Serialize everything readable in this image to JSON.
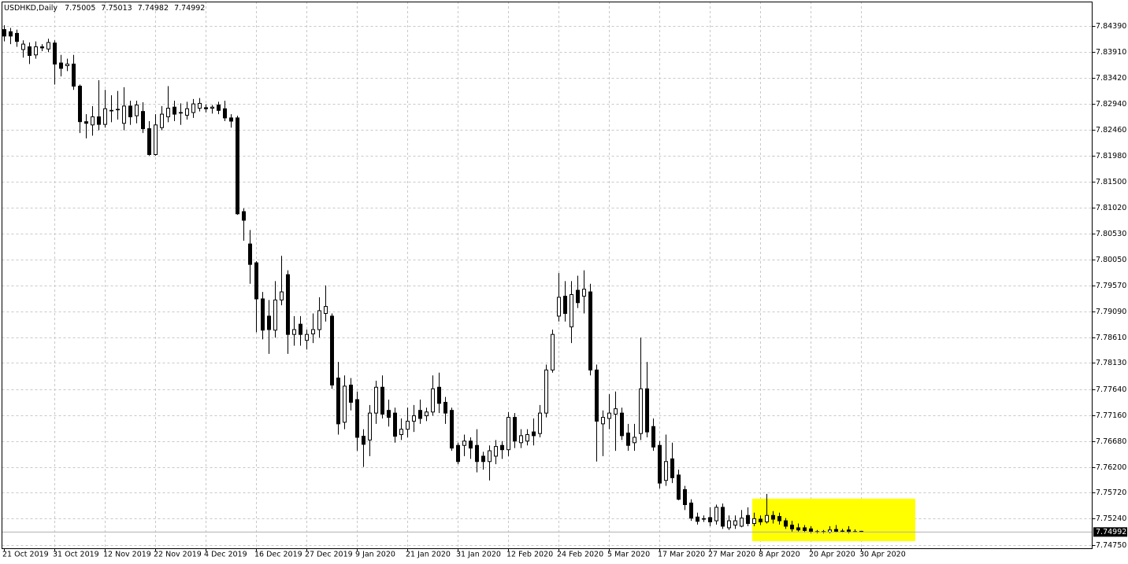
{
  "chart_data": {
    "type": "candlestick",
    "title": "USDHKD,Daily",
    "categories": [
      "21 Oct 2019",
      null,
      null,
      null,
      null,
      null,
      null,
      null,
      "31 Oct 2019",
      null,
      null,
      null,
      null,
      null,
      null,
      null,
      "12 Nov 2019",
      null,
      null,
      null,
      null,
      null,
      null,
      null,
      "22 Nov 2019",
      null,
      null,
      null,
      null,
      null,
      null,
      null,
      "4 Dec 2019",
      null,
      null,
      null,
      null,
      null,
      null,
      null,
      "16 Dec 2019",
      null,
      null,
      null,
      null,
      null,
      null,
      null,
      "27 Dec 2019",
      null,
      null,
      null,
      null,
      null,
      null,
      null,
      "9 Jan 2020",
      null,
      null,
      null,
      null,
      null,
      null,
      null,
      "21 Jan 2020",
      null,
      null,
      null,
      null,
      null,
      null,
      null,
      "31 Jan 2020",
      null,
      null,
      null,
      null,
      null,
      null,
      null,
      "12 Feb 2020",
      null,
      null,
      null,
      null,
      null,
      null,
      null,
      "24 Feb 2020",
      null,
      null,
      null,
      null,
      null,
      null,
      null,
      "5 Mar 2020",
      null,
      null,
      null,
      null,
      null,
      null,
      null,
      "17 Mar 2020",
      null,
      null,
      null,
      null,
      null,
      null,
      null,
      "27 Mar 2020",
      null,
      null,
      null,
      null,
      null,
      null,
      null,
      "8 Apr 2020",
      null,
      null,
      null,
      null,
      null,
      null,
      null,
      "20 Apr 2020",
      null,
      null,
      null,
      null,
      null,
      null,
      null,
      "30 Apr 2020"
    ],
    "open": [
      7.8432,
      7.8428,
      7.8425,
      7.8395,
      7.84,
      7.8385,
      7.84,
      7.8396,
      7.8407,
      7.837,
      7.8365,
      7.8368,
      7.8327,
      7.8261,
      7.8255,
      7.827,
      7.8256,
      7.8282,
      7.8283,
      7.8258,
      7.829,
      7.8272,
      7.828,
      7.8248,
      7.82,
      7.825,
      7.827,
      7.8288,
      7.8277,
      7.8273,
      7.8278,
      7.8286,
      7.8287,
      7.8286,
      7.8292,
      7.8285,
      7.8268,
      7.8268,
      7.8094,
      7.8034,
      7.7999,
      7.7932,
      7.79,
      7.7874,
      7.793,
      7.7977,
      7.7866,
      7.7885,
      7.7855,
      7.7867,
      7.7875,
      7.7905,
      7.79,
      7.7785,
      7.7703,
      7.7772,
      7.7745,
      7.7677,
      7.767,
      7.772,
      7.7768,
      7.7725,
      7.772,
      7.768,
      7.769,
      7.7705,
      7.7725,
      7.7715,
      7.7722,
      7.7768,
      7.774,
      7.7725,
      7.766,
      7.766,
      7.7668,
      7.766,
      7.764,
      7.763,
      7.764,
      7.766,
      7.7652,
      7.7712,
      7.7665,
      7.7668,
      7.7685,
      7.7682,
      7.772,
      7.78,
      7.79,
      7.7937,
      7.788,
      7.7948,
      7.7937,
      7.7945,
      7.78,
      7.77,
      7.771,
      7.7718,
      7.772,
      7.7683,
      7.7665,
      7.7682,
      7.7765,
      7.7695,
      7.766,
      7.7595,
      7.7635,
      7.7605,
      7.7578,
      7.7553,
      7.7527,
      7.7524,
      7.7526,
      7.752,
      7.7545,
      7.7507,
      7.7512,
      7.751,
      7.753,
      7.7515,
      7.7523,
      7.7518,
      7.753,
      7.7528,
      7.752,
      7.7512,
      7.7507,
      7.7507,
      7.7505,
      7.75,
      7.7499,
      7.7499,
      7.7504,
      7.7501,
      7.7503,
      7.75,
      7.75005
    ],
    "high": [
      7.844,
      7.8435,
      7.8432,
      7.8412,
      7.8408,
      7.841,
      7.8405,
      7.8415,
      7.8412,
      7.8385,
      7.8378,
      7.8385,
      7.833,
      7.8275,
      7.829,
      7.8338,
      7.832,
      7.831,
      7.8318,
      7.8325,
      7.83,
      7.83,
      7.8297,
      7.8262,
      7.8275,
      7.829,
      7.8327,
      7.83,
      7.8295,
      7.8298,
      7.8303,
      7.8305,
      7.8293,
      7.8292,
      7.8298,
      7.83,
      7.8275,
      7.8272,
      7.81,
      7.806,
      7.8002,
      7.7945,
      7.793,
      7.7965,
      7.8012,
      7.7985,
      7.79,
      7.79,
      7.7875,
      7.7905,
      7.7935,
      7.7957,
      7.7905,
      7.7815,
      7.779,
      7.7785,
      7.776,
      7.769,
      7.7735,
      7.778,
      7.779,
      7.7745,
      7.773,
      7.771,
      7.773,
      7.7735,
      7.7745,
      7.773,
      7.779,
      7.7795,
      7.775,
      7.773,
      7.7665,
      7.768,
      7.7675,
      7.769,
      7.7648,
      7.766,
      7.767,
      7.7668,
      7.7722,
      7.772,
      7.769,
      7.769,
      7.771,
      7.7735,
      7.781,
      7.7875,
      7.798,
      7.7965,
      7.7965,
      7.7975,
      7.7985,
      7.796,
      7.781,
      7.7725,
      7.7755,
      7.776,
      7.773,
      7.77,
      7.77,
      7.786,
      7.7815,
      7.771,
      7.7668,
      7.768,
      7.7665,
      7.7615,
      7.7585,
      7.756,
      7.7535,
      7.753,
      7.7545,
      7.755,
      7.7552,
      7.753,
      7.753,
      7.754,
      7.7545,
      7.7535,
      7.753,
      7.757,
      7.7538,
      7.7535,
      7.7525,
      7.752,
      7.7515,
      7.7512,
      7.751,
      7.7503,
      7.7503,
      7.751,
      7.7512,
      7.7505,
      7.751,
      7.7504,
      7.75013
    ],
    "low": [
      7.841,
      7.8405,
      7.84,
      7.838,
      7.8368,
      7.8378,
      7.8392,
      7.839,
      7.833,
      7.8345,
      7.8355,
      7.832,
      7.824,
      7.823,
      7.8235,
      7.8245,
      7.825,
      7.826,
      7.8265,
      7.8245,
      7.8255,
      7.8258,
      7.824,
      7.8198,
      7.8198,
      7.8245,
      7.826,
      7.8262,
      7.8255,
      7.8265,
      7.8268,
      7.828,
      7.8278,
      7.8276,
      7.8275,
      7.8262,
      7.825,
      7.8088,
      7.804,
      7.796,
      7.787,
      7.7857,
      7.783,
      7.786,
      7.792,
      7.783,
      7.7845,
      7.7845,
      7.7838,
      7.785,
      7.786,
      7.789,
      7.7765,
      7.768,
      7.769,
      7.7725,
      7.765,
      7.762,
      7.764,
      7.77,
      7.771,
      7.7695,
      7.7665,
      7.767,
      7.7675,
      7.7685,
      7.77,
      7.7705,
      7.7715,
      7.772,
      7.77,
      7.765,
      7.7625,
      7.764,
      7.7635,
      7.761,
      7.7615,
      7.7595,
      7.7625,
      7.7635,
      7.764,
      7.7655,
      7.7655,
      7.766,
      7.766,
      7.7675,
      7.7712,
      7.7795,
      7.789,
      7.789,
      7.785,
      7.7915,
      7.7905,
      7.779,
      7.763,
      7.764,
      7.769,
      7.765,
      7.767,
      7.765,
      7.765,
      7.767,
      7.7675,
      7.765,
      7.758,
      7.7585,
      7.759,
      7.7558,
      7.754,
      7.752,
      7.7513,
      7.7518,
      7.751,
      7.7513,
      7.7505,
      7.7503,
      7.7505,
      7.7508,
      7.751,
      7.751,
      7.7512,
      7.7515,
      7.7515,
      7.7513,
      7.7505,
      7.75,
      7.75,
      7.7498,
      7.7497,
      7.7497,
      7.7497,
      7.7497,
      7.7498,
      7.7498,
      7.7497,
      7.7498,
      7.74982
    ],
    "close": [
      7.842,
      7.842,
      7.841,
      7.8405,
      7.8384,
      7.84,
      7.8398,
      7.8408,
      7.8368,
      7.836,
      7.8368,
      7.8327,
      7.8261,
      7.8258,
      7.827,
      7.8256,
      7.8285,
      7.8281,
      7.8284,
      7.829,
      7.827,
      7.8292,
      7.8248,
      7.82,
      7.8255,
      7.8275,
      7.8286,
      7.8275,
      7.8278,
      7.8285,
      7.8294,
      7.8295,
      7.8285,
      7.8288,
      7.8282,
      7.8268,
      7.8262,
      7.809,
      7.8078,
      7.7996,
      7.7932,
      7.7874,
      7.7875,
      7.793,
      7.7945,
      7.7866,
      7.7875,
      7.7866,
      7.7866,
      7.7875,
      7.791,
      7.7918,
      7.7772,
      7.77,
      7.777,
      7.774,
      7.7675,
      7.7662,
      7.772,
      7.7768,
      7.7718,
      7.7712,
      7.7677,
      7.769,
      7.7705,
      7.7715,
      7.771,
      7.7722,
      7.7765,
      7.7738,
      7.772,
      7.7655,
      7.763,
      7.7668,
      7.7655,
      7.763,
      7.763,
      7.765,
      7.7658,
      7.7652,
      7.7712,
      7.7668,
      7.7678,
      7.768,
      7.7678,
      7.772,
      7.78,
      7.7866,
      7.7935,
      7.7905,
      7.794,
      7.7925,
      7.795,
      7.78,
      7.7705,
      7.7712,
      7.772,
      7.7728,
      7.7678,
      7.766,
      7.7675,
      7.7765,
      7.7685,
      7.7657,
      7.759,
      7.763,
      7.76,
      7.756,
      7.755,
      7.7525,
      7.7519,
      7.7523,
      7.7518,
      7.7545,
      7.751,
      7.752,
      7.752,
      7.7525,
      7.7515,
      7.7524,
      7.7518,
      7.753,
      7.7523,
      7.752,
      7.751,
      7.7505,
      7.7503,
      7.7502,
      7.75,
      7.7499,
      7.75,
      7.7503,
      7.75,
      7.7501,
      7.7499,
      7.75,
      7.74992
    ],
    "up_color": "#ffffff",
    "down_color": "#000000",
    "wick_color": "#000000",
    "ylim": [
      7.7469,
      7.8484
    ],
    "yticks": [
      {
        "value": 7.8439,
        "label": "7.84390"
      },
      {
        "value": 7.8391,
        "label": "7.83910"
      },
      {
        "value": 7.8342,
        "label": "7.83420"
      },
      {
        "value": 7.8294,
        "label": "7.82940"
      },
      {
        "value": 7.8246,
        "label": "7.82460"
      },
      {
        "value": 7.8198,
        "label": "7.81980"
      },
      {
        "value": 7.815,
        "label": "7.81500"
      },
      {
        "value": 7.8102,
        "label": "7.81020"
      },
      {
        "value": 7.8053,
        "label": "7.80530"
      },
      {
        "value": 7.8005,
        "label": "7.80050"
      },
      {
        "value": 7.7957,
        "label": "7.79570"
      },
      {
        "value": 7.7909,
        "label": "7.79090"
      },
      {
        "value": 7.7861,
        "label": "7.78610"
      },
      {
        "value": 7.7813,
        "label": "7.78130"
      },
      {
        "value": 7.7764,
        "label": "7.77640"
      },
      {
        "value": 7.7716,
        "label": "7.77160"
      },
      {
        "value": 7.7668,
        "label": "7.76680"
      },
      {
        "value": 7.762,
        "label": "7.76200"
      },
      {
        "value": 7.7572,
        "label": "7.75720"
      },
      {
        "value": 7.7524,
        "label": "7.75240"
      },
      {
        "value": 7.7475,
        "label": "7.74750"
      }
    ],
    "grid": true,
    "price_line": true
  }
}
